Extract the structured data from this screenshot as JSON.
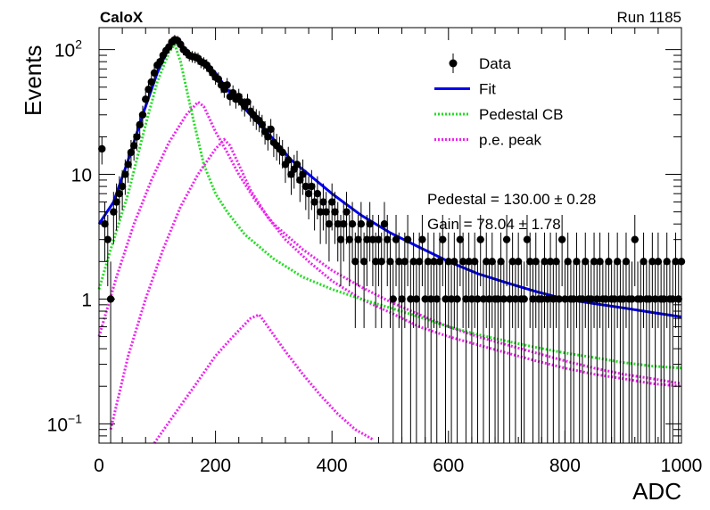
{
  "header": {
    "experiment": "CaloX",
    "run": "Run 1185"
  },
  "chart_data": {
    "type": "scatter",
    "xlabel": "ADC",
    "ylabel": "Events",
    "xlim": [
      0,
      1000
    ],
    "ylim": [
      0.07,
      150
    ],
    "yscale": "log",
    "grid": false,
    "legend_placement": "top-right",
    "x_ticks": [
      {
        "v": 0,
        "label": "0"
      },
      {
        "v": 200,
        "label": "200"
      },
      {
        "v": 400,
        "label": "400"
      },
      {
        "v": 600,
        "label": "600"
      },
      {
        "v": 800,
        "label": "800"
      },
      {
        "v": 1000,
        "label": "1000"
      }
    ],
    "y_ticks": [
      {
        "v": 100,
        "base": "10",
        "exp": "2"
      },
      {
        "v": 10,
        "base": "10",
        "exp": ""
      },
      {
        "v": 1,
        "base": "1",
        "exp": ""
      },
      {
        "v": 0.1,
        "base": "10",
        "exp": "−1"
      }
    ],
    "legend": [
      {
        "label": "Data",
        "style": "marker",
        "color": "#000000"
      },
      {
        "label": "Fit",
        "style": "solid",
        "color": "#0000ee"
      },
      {
        "label": "Pedestal CB",
        "style": "dotted",
        "color": "#22dd22"
      },
      {
        "label": "p.e. peak",
        "style": "dotted",
        "color": "#ee22ee"
      }
    ],
    "stats": [
      "Pedestal = 130.00 ± 0.28",
      "Gain = 78.04 ± 1.78"
    ],
    "data_points": [
      [
        5,
        16
      ],
      [
        10,
        4
      ],
      [
        15,
        3
      ],
      [
        20,
        1
      ],
      [
        25,
        5
      ],
      [
        30,
        6
      ],
      [
        35,
        7
      ],
      [
        40,
        8
      ],
      [
        45,
        10
      ],
      [
        50,
        12
      ],
      [
        55,
        15
      ],
      [
        60,
        17
      ],
      [
        65,
        20
      ],
      [
        70,
        25
      ],
      [
        75,
        30
      ],
      [
        80,
        40
      ],
      [
        85,
        48
      ],
      [
        90,
        55
      ],
      [
        95,
        65
      ],
      [
        100,
        75
      ],
      [
        105,
        80
      ],
      [
        110,
        90
      ],
      [
        115,
        98
      ],
      [
        120,
        105
      ],
      [
        125,
        115
      ],
      [
        130,
        120
      ],
      [
        135,
        118
      ],
      [
        140,
        110
      ],
      [
        145,
        100
      ],
      [
        150,
        95
      ],
      [
        155,
        90
      ],
      [
        160,
        88
      ],
      [
        165,
        87
      ],
      [
        170,
        85
      ],
      [
        175,
        80
      ],
      [
        180,
        78
      ],
      [
        185,
        75
      ],
      [
        190,
        70
      ],
      [
        195,
        65
      ],
      [
        200,
        60
      ],
      [
        205,
        58
      ],
      [
        210,
        52
      ],
      [
        215,
        48
      ],
      [
        220,
        52
      ],
      [
        225,
        42
      ],
      [
        230,
        45
      ],
      [
        235,
        40
      ],
      [
        240,
        42
      ],
      [
        245,
        38
      ],
      [
        250,
        35
      ],
      [
        255,
        38
      ],
      [
        260,
        32
      ],
      [
        265,
        30
      ],
      [
        270,
        28
      ],
      [
        275,
        27
      ],
      [
        280,
        25
      ],
      [
        285,
        22
      ],
      [
        290,
        20
      ],
      [
        295,
        23
      ],
      [
        300,
        18
      ],
      [
        305,
        17
      ],
      [
        310,
        16
      ],
      [
        315,
        15
      ],
      [
        320,
        12
      ],
      [
        325,
        13
      ],
      [
        330,
        10
      ],
      [
        335,
        11
      ],
      [
        340,
        12
      ],
      [
        345,
        9
      ],
      [
        350,
        10
      ],
      [
        355,
        8
      ],
      [
        360,
        7
      ],
      [
        365,
        8
      ],
      [
        370,
        6
      ],
      [
        375,
        7
      ],
      [
        380,
        5
      ],
      [
        385,
        6
      ],
      [
        390,
        5
      ],
      [
        395,
        4
      ],
      [
        400,
        6
      ],
      [
        405,
        5
      ],
      [
        410,
        4
      ],
      [
        415,
        3
      ],
      [
        420,
        4
      ],
      [
        425,
        5
      ],
      [
        430,
        3
      ],
      [
        435,
        4
      ],
      [
        440,
        2
      ],
      [
        445,
        3
      ],
      [
        450,
        4
      ],
      [
        455,
        2
      ],
      [
        460,
        3
      ],
      [
        465,
        4
      ],
      [
        470,
        3
      ],
      [
        475,
        2
      ],
      [
        480,
        3
      ],
      [
        485,
        2
      ],
      [
        490,
        4
      ],
      [
        495,
        3
      ],
      [
        500,
        2
      ],
      [
        505,
        1
      ],
      [
        510,
        3
      ],
      [
        515,
        2
      ],
      [
        520,
        1
      ],
      [
        525,
        2
      ],
      [
        530,
        3
      ],
      [
        535,
        1
      ],
      [
        540,
        2
      ],
      [
        545,
        1
      ],
      [
        550,
        2
      ],
      [
        555,
        3
      ],
      [
        560,
        1
      ],
      [
        565,
        2
      ],
      [
        570,
        1
      ],
      [
        575,
        2
      ],
      [
        580,
        1
      ],
      [
        585,
        2
      ],
      [
        590,
        3
      ],
      [
        595,
        1
      ],
      [
        600,
        2
      ],
      [
        605,
        1
      ],
      [
        610,
        2
      ],
      [
        615,
        1
      ],
      [
        620,
        3
      ],
      [
        625,
        2
      ],
      [
        630,
        1
      ],
      [
        635,
        2
      ],
      [
        640,
        1
      ],
      [
        645,
        2
      ],
      [
        650,
        1
      ],
      [
        655,
        3
      ],
      [
        660,
        1
      ],
      [
        665,
        2
      ],
      [
        670,
        1
      ],
      [
        675,
        2
      ],
      [
        680,
        1
      ],
      [
        685,
        1
      ],
      [
        690,
        2
      ],
      [
        695,
        1
      ],
      [
        700,
        3
      ],
      [
        705,
        1
      ],
      [
        710,
        2
      ],
      [
        715,
        1
      ],
      [
        720,
        2
      ],
      [
        725,
        1
      ],
      [
        730,
        1
      ],
      [
        735,
        3
      ],
      [
        740,
        2
      ],
      [
        745,
        1
      ],
      [
        750,
        2
      ],
      [
        755,
        1
      ],
      [
        760,
        1
      ],
      [
        765,
        2
      ],
      [
        770,
        1
      ],
      [
        775,
        2
      ],
      [
        780,
        1
      ],
      [
        785,
        2
      ],
      [
        790,
        1
      ],
      [
        795,
        3
      ],
      [
        800,
        1
      ],
      [
        805,
        2
      ],
      [
        810,
        1
      ],
      [
        815,
        1
      ],
      [
        820,
        2
      ],
      [
        825,
        1
      ],
      [
        830,
        1
      ],
      [
        835,
        2
      ],
      [
        840,
        1
      ],
      [
        845,
        1
      ],
      [
        850,
        2
      ],
      [
        855,
        1
      ],
      [
        860,
        2
      ],
      [
        865,
        1
      ],
      [
        870,
        1
      ],
      [
        875,
        2
      ],
      [
        880,
        1
      ],
      [
        885,
        1
      ],
      [
        890,
        2
      ],
      [
        895,
        1
      ],
      [
        900,
        1
      ],
      [
        905,
        2
      ],
      [
        910,
        1
      ],
      [
        915,
        1
      ],
      [
        920,
        3
      ],
      [
        925,
        1
      ],
      [
        930,
        1
      ],
      [
        935,
        2
      ],
      [
        940,
        1
      ],
      [
        945,
        1
      ],
      [
        950,
        2
      ],
      [
        955,
        1
      ],
      [
        960,
        2
      ],
      [
        965,
        1
      ],
      [
        970,
        1
      ],
      [
        975,
        2
      ],
      [
        980,
        1
      ],
      [
        985,
        1
      ],
      [
        990,
        2
      ],
      [
        995,
        1
      ],
      [
        1000,
        2
      ]
    ],
    "fit_curve": [
      [
        0,
        4
      ],
      [
        25,
        6
      ],
      [
        50,
        13
      ],
      [
        75,
        30
      ],
      [
        100,
        65
      ],
      [
        120,
        105
      ],
      [
        130,
        120
      ],
      [
        140,
        110
      ],
      [
        160,
        90
      ],
      [
        180,
        80
      ],
      [
        200,
        65
      ],
      [
        220,
        48
      ],
      [
        240,
        38
      ],
      [
        260,
        30
      ],
      [
        280,
        24
      ],
      [
        300,
        19
      ],
      [
        330,
        13
      ],
      [
        360,
        10
      ],
      [
        400,
        7
      ],
      [
        450,
        4.7
      ],
      [
        500,
        3.4
      ],
      [
        550,
        2.6
      ],
      [
        600,
        2.0
      ],
      [
        650,
        1.6
      ],
      [
        700,
        1.35
      ],
      [
        750,
        1.15
      ],
      [
        800,
        1.0
      ],
      [
        850,
        0.92
      ],
      [
        900,
        0.85
      ],
      [
        950,
        0.78
      ],
      [
        1000,
        0.72
      ]
    ],
    "pedestal_cb": [
      [
        0,
        1.2
      ],
      [
        20,
        2.5
      ],
      [
        50,
        7
      ],
      [
        80,
        25
      ],
      [
        100,
        55
      ],
      [
        120,
        95
      ],
      [
        130,
        110
      ],
      [
        140,
        80
      ],
      [
        160,
        30
      ],
      [
        180,
        12
      ],
      [
        200,
        7
      ],
      [
        220,
        5
      ],
      [
        250,
        3.3
      ],
      [
        300,
        2.1
      ],
      [
        350,
        1.5
      ],
      [
        400,
        1.2
      ],
      [
        450,
        1.0
      ],
      [
        500,
        0.85
      ],
      [
        550,
        0.72
      ],
      [
        600,
        0.6
      ],
      [
        650,
        0.52
      ],
      [
        700,
        0.46
      ],
      [
        750,
        0.41
      ],
      [
        800,
        0.37
      ],
      [
        850,
        0.34
      ],
      [
        900,
        0.31
      ],
      [
        950,
        0.29
      ],
      [
        1000,
        0.28
      ]
    ],
    "pe_peak_1": [
      [
        0,
        0.5
      ],
      [
        30,
        1.5
      ],
      [
        60,
        4
      ],
      [
        90,
        9
      ],
      [
        120,
        18
      ],
      [
        150,
        30
      ],
      [
        170,
        38
      ],
      [
        180,
        35
      ],
      [
        200,
        22
      ],
      [
        220,
        15
      ],
      [
        240,
        10
      ],
      [
        270,
        6
      ],
      [
        300,
        4
      ],
      [
        350,
        2.5
      ],
      [
        400,
        1.7
      ],
      [
        450,
        1.25
      ],
      [
        500,
        0.95
      ],
      [
        550,
        0.75
      ],
      [
        600,
        0.6
      ],
      [
        650,
        0.5
      ],
      [
        700,
        0.43
      ],
      [
        750,
        0.37
      ],
      [
        800,
        0.32
      ],
      [
        850,
        0.28
      ],
      [
        900,
        0.25
      ],
      [
        950,
        0.23
      ],
      [
        1000,
        0.21
      ]
    ],
    "pe_peak_2": [
      [
        20,
        0.09
      ],
      [
        50,
        0.35
      ],
      [
        80,
        1.0
      ],
      [
        110,
        2.5
      ],
      [
        140,
        5.5
      ],
      [
        170,
        10
      ],
      [
        200,
        16
      ],
      [
        215,
        19
      ],
      [
        225,
        17
      ],
      [
        240,
        12
      ],
      [
        260,
        7.5
      ],
      [
        290,
        4.5
      ],
      [
        320,
        3
      ],
      [
        360,
        2
      ],
      [
        400,
        1.4
      ],
      [
        450,
        1.0
      ],
      [
        500,
        0.78
      ],
      [
        550,
        0.6
      ],
      [
        600,
        0.5
      ],
      [
        650,
        0.43
      ],
      [
        700,
        0.37
      ],
      [
        750,
        0.32
      ],
      [
        800,
        0.28
      ],
      [
        850,
        0.25
      ],
      [
        900,
        0.23
      ],
      [
        950,
        0.21
      ],
      [
        1000,
        0.2
      ]
    ],
    "pe_peak_3": [
      [
        95,
        0.07
      ],
      [
        130,
        0.12
      ],
      [
        170,
        0.22
      ],
      [
        200,
        0.35
      ],
      [
        230,
        0.5
      ],
      [
        260,
        0.7
      ],
      [
        275,
        0.75
      ],
      [
        290,
        0.6
      ],
      [
        320,
        0.38
      ],
      [
        350,
        0.25
      ],
      [
        380,
        0.17
      ],
      [
        410,
        0.12
      ],
      [
        440,
        0.09
      ],
      [
        470,
        0.075
      ]
    ]
  }
}
